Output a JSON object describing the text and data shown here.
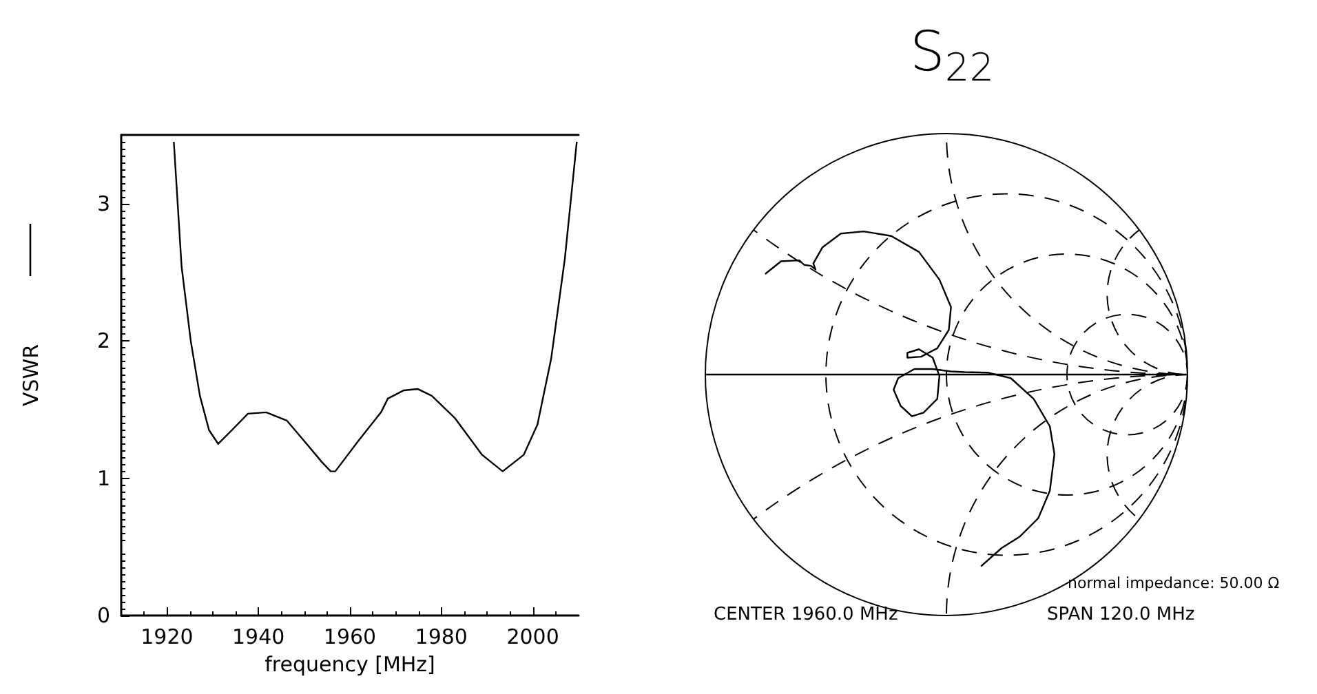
{
  "chart_data": [
    {
      "type": "line",
      "xlabel": "frequency [MHz]",
      "ylabel": "VSWR",
      "color": "#000000",
      "marker": "none",
      "x": [
        1921.5,
        1923.2,
        1925.2,
        1927.2,
        1929.2,
        1931.2,
        1934.2,
        1937.7,
        1941.7,
        1946.2,
        1950.8,
        1953.8,
        1955.8,
        1956.8,
        1961.8,
        1966.8,
        1968.3,
        1971.8,
        1974.8,
        1977.9,
        1982.9,
        1988.9,
        1993.4,
        1998,
        2001,
        2004,
        2007,
        2009.6
      ],
      "values": [
        3.45,
        2.54,
        2.0,
        1.6,
        1.35,
        1.25,
        1.35,
        1.47,
        1.48,
        1.42,
        1.24,
        1.12,
        1.05,
        1.05,
        1.27,
        1.48,
        1.58,
        1.64,
        1.65,
        1.6,
        1.44,
        1.17,
        1.05,
        1.17,
        1.39,
        1.87,
        2.6,
        3.45
      ],
      "xlim": [
        1910,
        2010
      ],
      "xticks": [
        1920,
        1940,
        1960,
        1980,
        2000
      ],
      "ylim": [
        0,
        3.5
      ],
      "yticks": [
        0,
        1,
        2,
        3
      ]
    },
    {
      "type": "other",
      "title": "S$_{22}$",
      "annotations": [
        "normal impedance: 50.00 Ω",
        "CENTER 1960.0 MHz",
        "SPAN 120.0 MHz"
      ]
    }
  ]
}
